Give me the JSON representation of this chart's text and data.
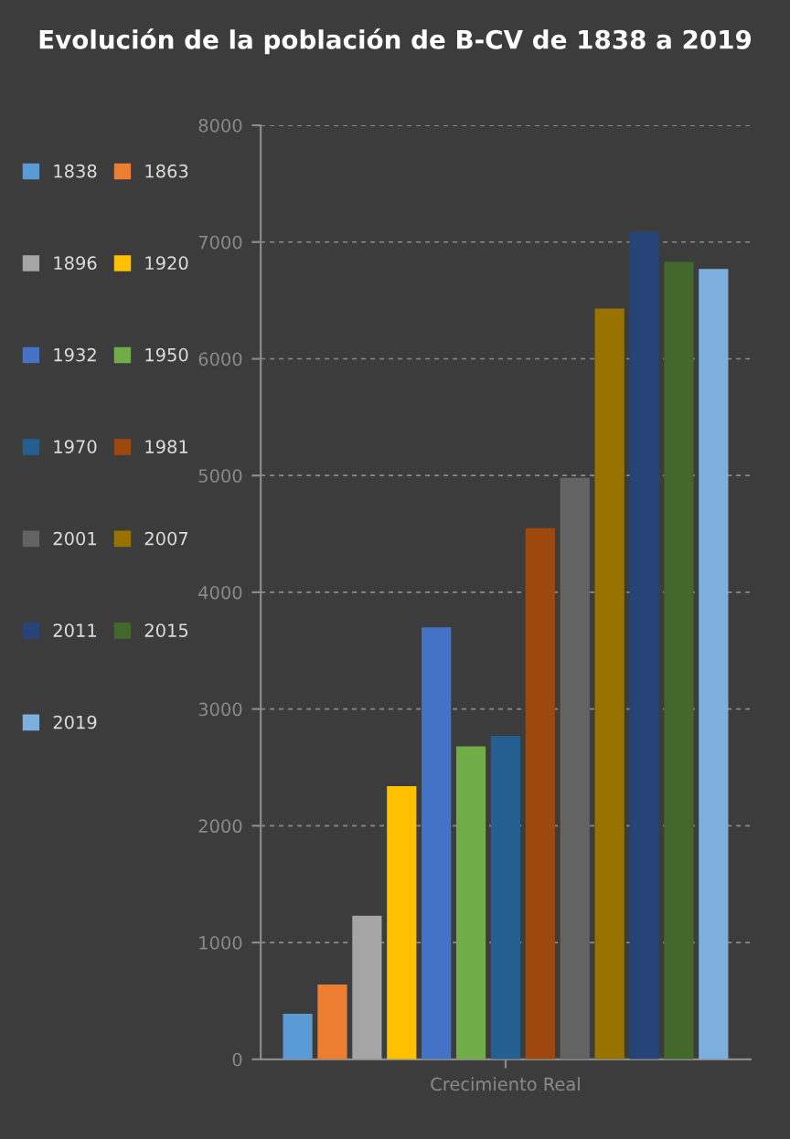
{
  "chart_data": {
    "type": "bar",
    "title": "Evolución de la población de B-CV de 1838 a 2019",
    "categories": [
      "Crecimiento Real"
    ],
    "series": [
      {
        "name": "1838",
        "color": "#5b9bd5",
        "values": [
          390
        ]
      },
      {
        "name": "1863",
        "color": "#ed7d31",
        "values": [
          640
        ]
      },
      {
        "name": "1896",
        "color": "#a5a5a5",
        "values": [
          1230
        ]
      },
      {
        "name": "1920",
        "color": "#ffc000",
        "values": [
          2340
        ]
      },
      {
        "name": "1932",
        "color": "#4472c4",
        "values": [
          3700
        ]
      },
      {
        "name": "1950",
        "color": "#70ad47",
        "values": [
          2680
        ]
      },
      {
        "name": "1970",
        "color": "#255e91",
        "values": [
          2770
        ]
      },
      {
        "name": "1981",
        "color": "#9e480e",
        "values": [
          4550
        ]
      },
      {
        "name": "2001",
        "color": "#636363",
        "values": [
          4980
        ]
      },
      {
        "name": "2007",
        "color": "#997300",
        "values": [
          6430
        ]
      },
      {
        "name": "2011",
        "color": "#264478",
        "values": [
          7090
        ]
      },
      {
        "name": "2015",
        "color": "#43682b",
        "values": [
          6830
        ]
      },
      {
        "name": "2019",
        "color": "#7cafdd",
        "values": [
          6770
        ]
      }
    ],
    "ylim": [
      0,
      8000
    ],
    "yticks": [
      0,
      1000,
      2000,
      3000,
      4000,
      5000,
      6000,
      7000,
      8000
    ],
    "grid": "y",
    "legend": "left"
  }
}
